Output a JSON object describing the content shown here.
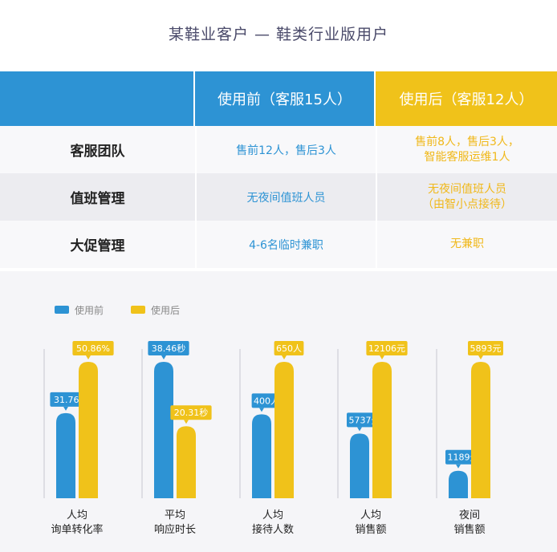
{
  "title": "某鞋业客户 — 鞋类行业版用户",
  "table": {
    "headers": [
      "",
      "使用前（客服15人）",
      "使用后（客服12人）"
    ],
    "rows": [
      {
        "label": "客服团队",
        "before": "售前12人，售后3人",
        "after": "售前8人，售后3人，\n智能客服运维1人"
      },
      {
        "label": "值班管理",
        "before": "无夜间值班人员",
        "after": "无夜间值班人员\n（由智小点接待）"
      },
      {
        "label": "大促管理",
        "before": "4-6名临时兼职",
        "after": "无兼职"
      }
    ]
  },
  "colors": {
    "before": "#2d93d4",
    "after": "#f0c21a"
  },
  "chart_data": {
    "type": "bar",
    "legend": [
      "使用前",
      "使用后"
    ],
    "legend_position": "top-left",
    "grid": false,
    "groups": [
      {
        "category": "人均\n询单转化率",
        "before": 31.76,
        "after": 50.86,
        "before_label": "31.76%",
        "after_label": "50.86%"
      },
      {
        "category": "平均\n响应时长",
        "before": 38.46,
        "after": 20.31,
        "before_label": "38.46秒",
        "after_label": "20.31秒"
      },
      {
        "category": "人均\n接待人数",
        "before": 400,
        "after": 650,
        "before_label": "400人",
        "after_label": "650人"
      },
      {
        "category": "人均\n销售额",
        "before": 5737,
        "after": 12106,
        "before_label": "5737元",
        "after_label": "12106元"
      },
      {
        "category": "夜间\n销售额",
        "before": 1189,
        "after": 5893,
        "before_label": "1189元",
        "after_label": "5893元"
      }
    ]
  }
}
